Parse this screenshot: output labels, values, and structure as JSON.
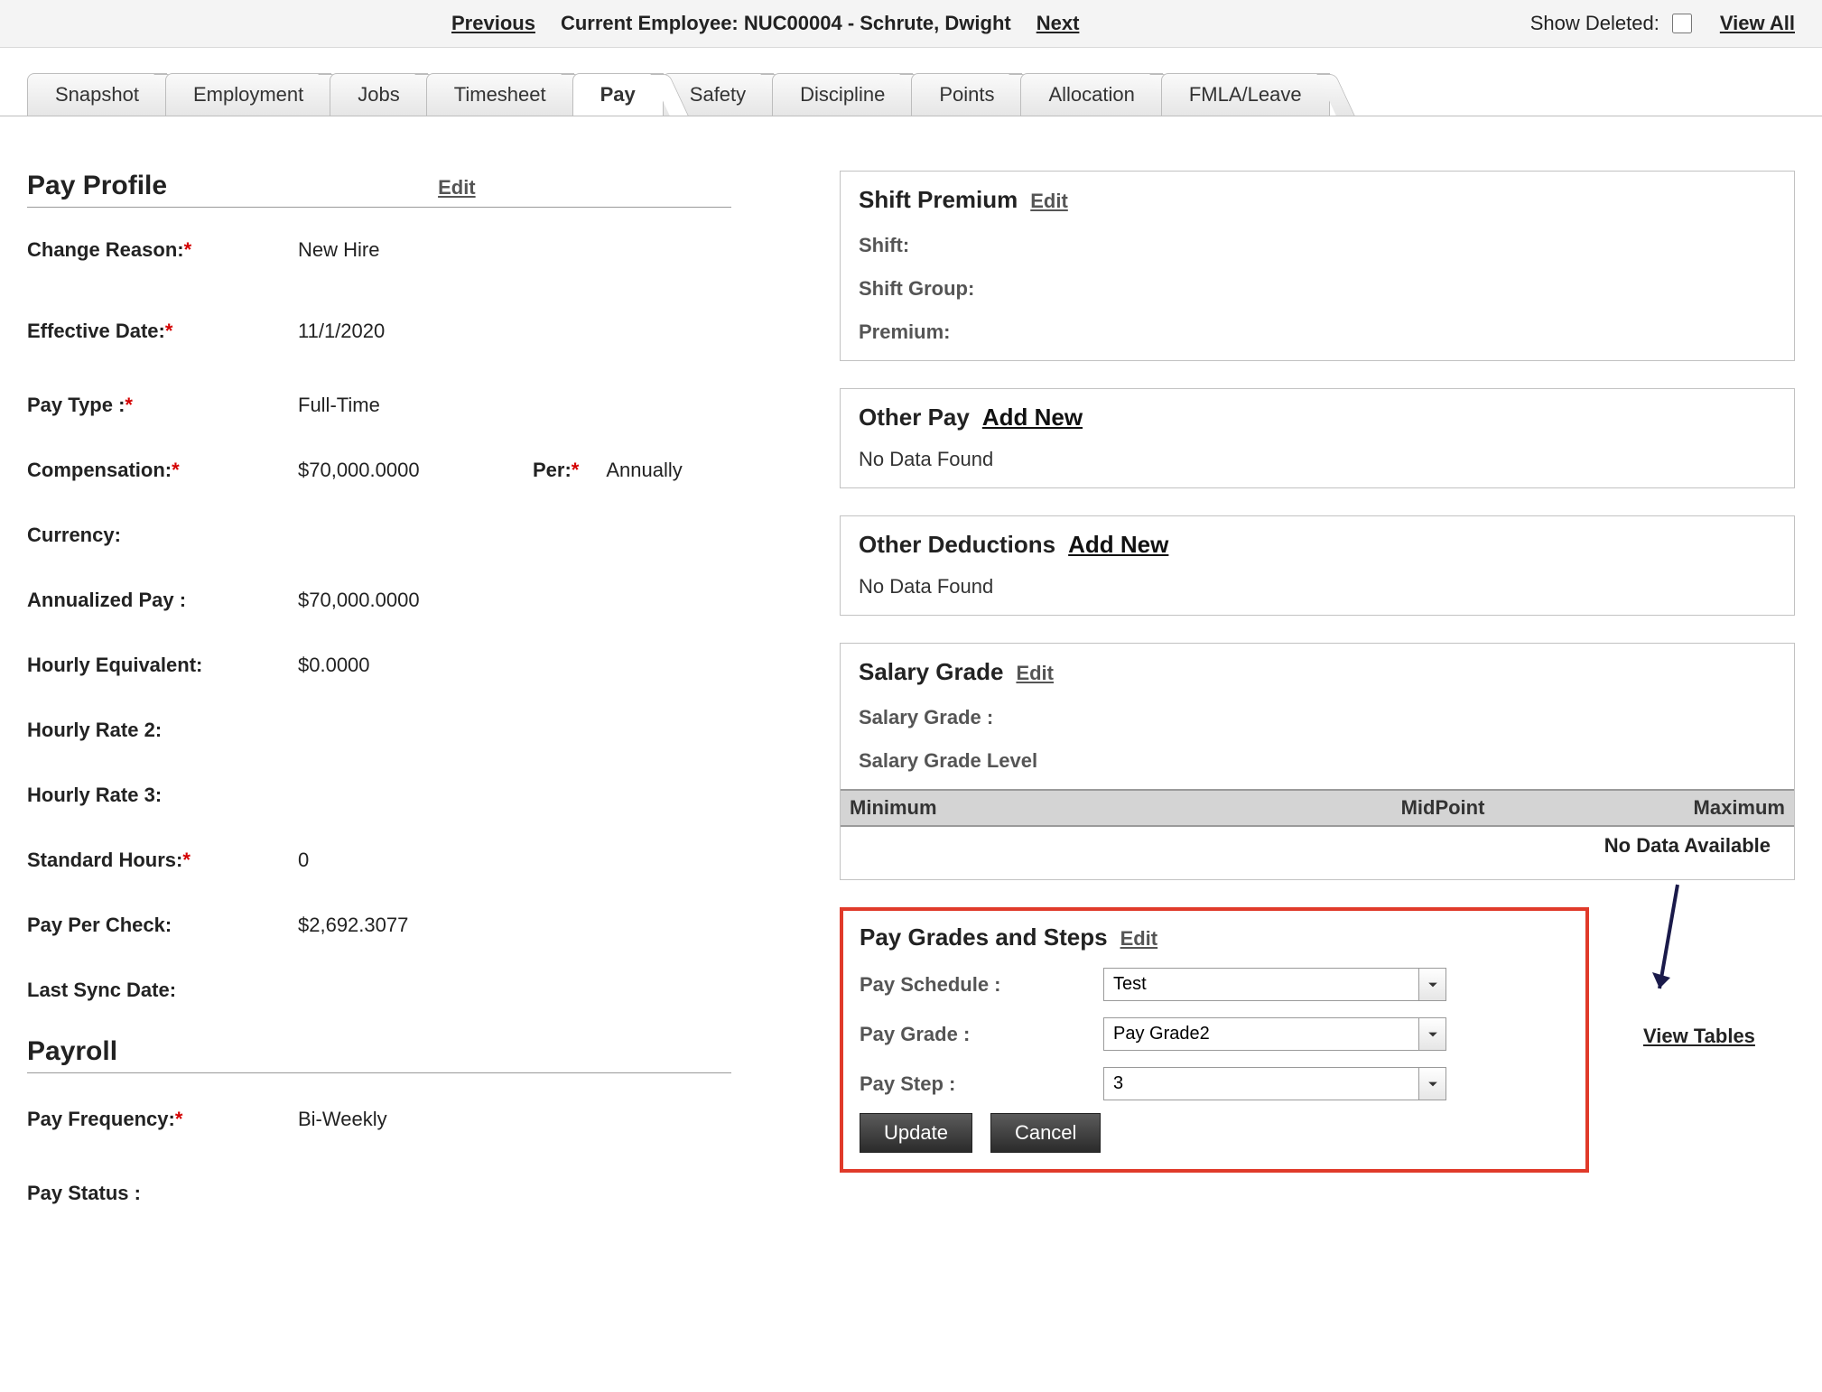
{
  "topbar": {
    "previous": "Previous",
    "current_label": "Current Employee: NUC00004 - Schrute, Dwight",
    "next": "Next",
    "show_deleted_label": "Show Deleted:",
    "view_all": "View All"
  },
  "tabs": [
    "Snapshot",
    "Employment",
    "Jobs",
    "Timesheet",
    "Pay",
    "Safety",
    "Discipline",
    "Points",
    "Allocation",
    "FMLA/Leave"
  ],
  "active_tab_index": 4,
  "pay_profile": {
    "title": "Pay Profile",
    "edit": "Edit",
    "fields": {
      "change_reason_label": "Change Reason:",
      "change_reason": "New Hire",
      "effective_date_label": "Effective Date:",
      "effective_date": "11/1/2020",
      "pay_type_label": "Pay Type :",
      "pay_type": "Full-Time",
      "compensation_label": "Compensation:",
      "compensation": "$70,000.0000",
      "per_label": "Per:",
      "per": "Annually",
      "currency_label": "Currency:",
      "currency": "",
      "annualized_label": "Annualized Pay :",
      "annualized": "$70,000.0000",
      "hourly_eq_label": "Hourly Equivalent:",
      "hourly_eq": "$0.0000",
      "hourly2_label": "Hourly Rate 2:",
      "hourly2": "",
      "hourly3_label": "Hourly Rate 3:",
      "hourly3": "",
      "std_hours_label": "Standard Hours:",
      "std_hours": "0",
      "ppc_label": "Pay Per Check:",
      "ppc": "$2,692.3077",
      "last_sync_label": "Last Sync Date:",
      "last_sync": ""
    }
  },
  "payroll": {
    "title": "Payroll",
    "pay_freq_label": "Pay Frequency:",
    "pay_freq": "Bi-Weekly",
    "pay_status_label": "Pay Status :",
    "pay_status": ""
  },
  "shift_premium": {
    "title": "Shift Premium",
    "edit": "Edit",
    "shift_label": "Shift:",
    "shift_group_label": "Shift Group:",
    "premium_label": "Premium:"
  },
  "other_pay": {
    "title": "Other Pay",
    "add": "Add New",
    "empty": "No Data Found"
  },
  "other_ded": {
    "title": "Other Deductions",
    "add": "Add New",
    "empty": "No Data Found"
  },
  "salary_grade": {
    "title": "Salary Grade",
    "edit": "Edit",
    "grade_label": "Salary Grade :",
    "level_label": "Salary Grade Level",
    "col_min": "Minimum",
    "col_mid": "MidPoint",
    "col_max": "Maximum",
    "no_data": "No Data Available"
  },
  "pay_grades": {
    "title": "Pay Grades and Steps",
    "edit": "Edit",
    "schedule_label": "Pay Schedule :",
    "schedule": "Test",
    "grade_label": "Pay Grade :",
    "grade": "Pay Grade2",
    "step_label": "Pay Step :",
    "step": "3",
    "update": "Update",
    "cancel": "Cancel"
  },
  "view_tables": "View Tables",
  "highlight_color": "#e03a2a",
  "arrow_color": "#1a1a4a"
}
